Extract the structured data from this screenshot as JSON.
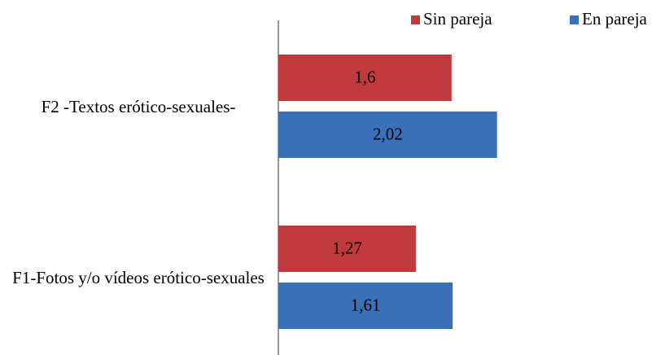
{
  "chart_data": {
    "type": "bar",
    "orientation": "horizontal",
    "categories": [
      "F2 -Textos erótico-sexuales-",
      "F1-Fotos y/o vídeos erótico-sexuales"
    ],
    "series": [
      {
        "name": "Sin pareja",
        "color": "#c0393b",
        "values": [
          1.6,
          1.27
        ],
        "value_labels": [
          "1,6",
          "1,27"
        ]
      },
      {
        "name": "En pareja",
        "color": "#3a70b8",
        "values": [
          2.02,
          1.61
        ],
        "value_labels": [
          "2,02",
          "1,61"
        ]
      }
    ],
    "legend": "top-right"
  }
}
